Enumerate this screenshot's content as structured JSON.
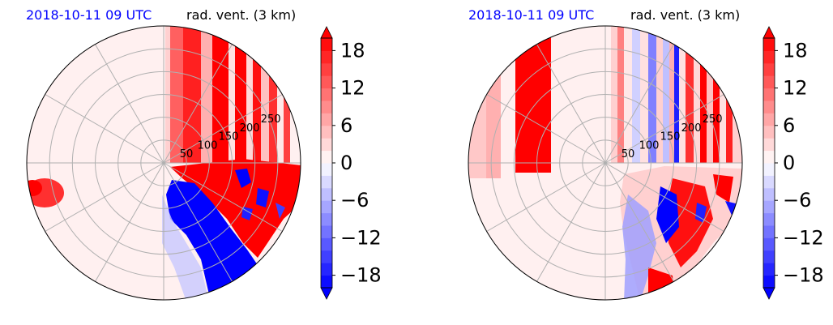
{
  "colors": {
    "negative_max": "#0000ff",
    "zero": "#ffffff",
    "positive_max": "#ff0000",
    "grid": "#b0b0b0",
    "title_date": "#0000ff"
  },
  "chart_data": [
    {
      "type": "heatmap",
      "projection": "polar",
      "title_left": "2018-10-11 09 UTC",
      "title_right": "rad. vent. (3 km)",
      "r_ticks": [
        50,
        100,
        150,
        200,
        250
      ],
      "r_tick_labels": [
        "50",
        "100",
        "150",
        "200",
        "250"
      ],
      "r_max": 300,
      "grid": true,
      "colorbar": {
        "min": -20,
        "max": 20,
        "levels_step": 2,
        "extend": "both",
        "ticks": [
          18,
          12,
          6,
          0,
          -6,
          -12,
          -18
        ],
        "tick_labels": [
          "18",
          "12",
          "6",
          "0",
          "−6",
          "−12",
          "−18"
        ]
      }
    },
    {
      "type": "heatmap",
      "projection": "polar",
      "title_left": "2018-10-11 09 UTC",
      "title_right": "rad. vent. (3 km)",
      "r_ticks": [
        50,
        100,
        150,
        200,
        250
      ],
      "r_tick_labels": [
        "50",
        "100",
        "150",
        "200",
        "250"
      ],
      "r_max": 300,
      "grid": true,
      "colorbar": {
        "min": -20,
        "max": 20,
        "levels_step": 2,
        "extend": "both",
        "ticks": [
          18,
          12,
          6,
          0,
          -6,
          -12,
          -18
        ],
        "tick_labels": [
          "18",
          "12",
          "6",
          "0",
          "−6",
          "−12",
          "−18"
        ]
      }
    }
  ]
}
